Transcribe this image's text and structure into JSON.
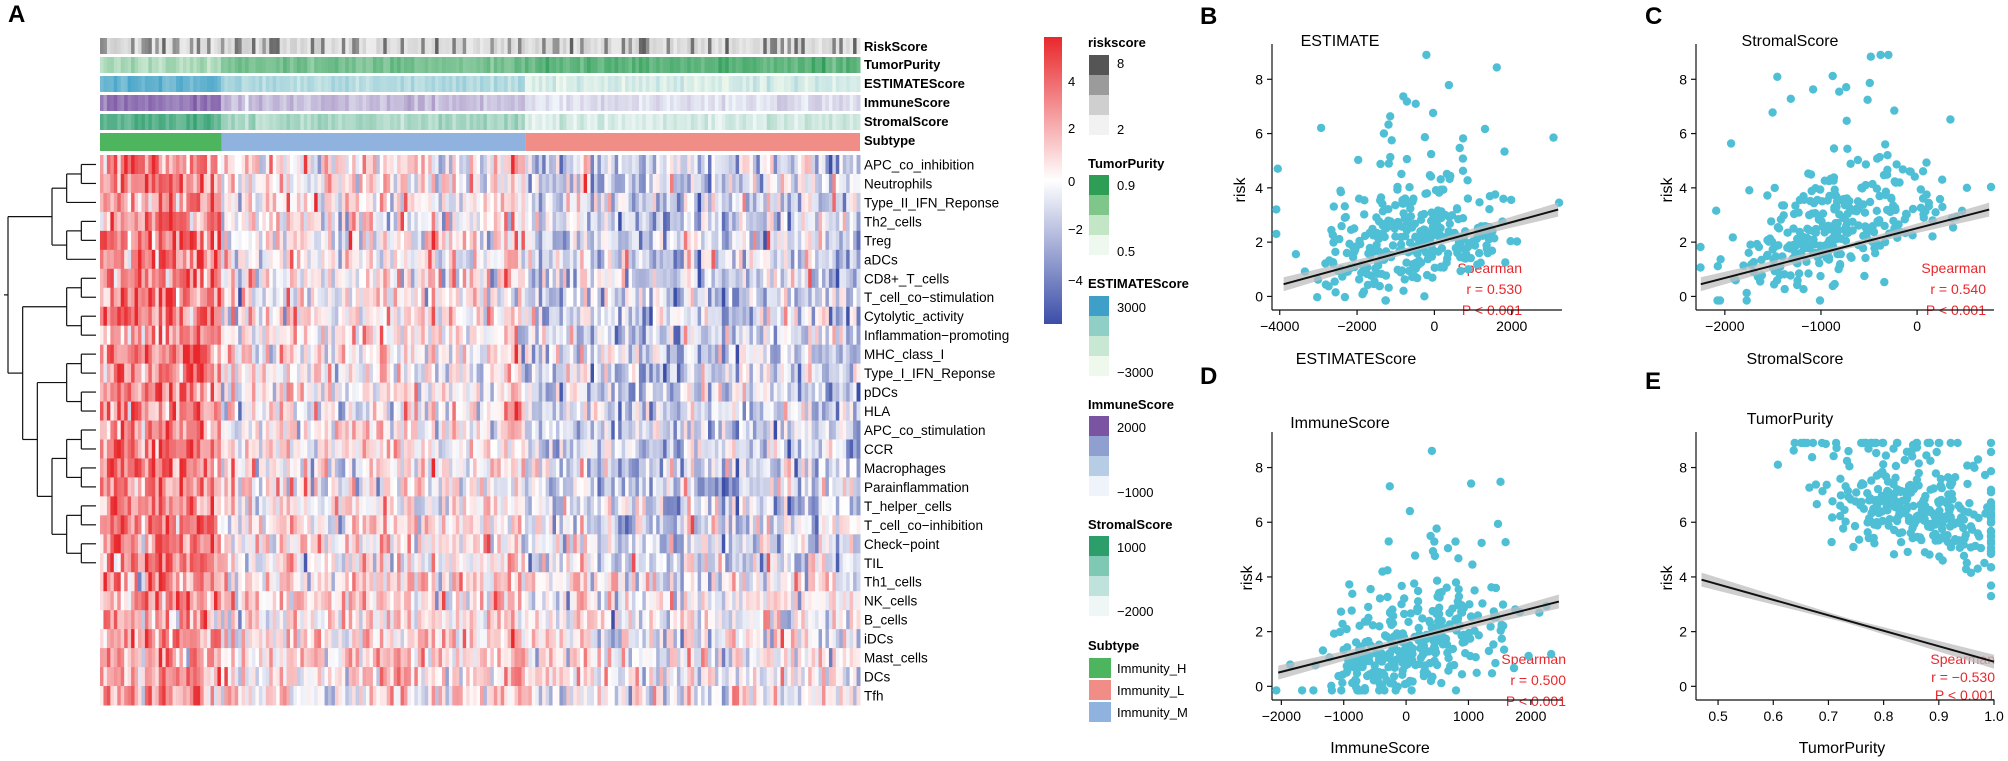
{
  "panel_letters": {
    "A": "A",
    "B": "B",
    "C": "C",
    "D": "D",
    "E": "E"
  },
  "colors": {
    "heat_high": "#e8282c",
    "heat_mid": "#ffffff",
    "heat_low": "#3b4ea8",
    "scatter_point": "#4fbfd6",
    "fit_line": "#111111",
    "ci_band": "#bdbdbd",
    "stat_text": "#e8282c",
    "immunity_h": "#4eb55f",
    "immunity_l": "#ef8d86",
    "immunity_m": "#8fb3de"
  },
  "heatmap": {
    "annotation_labels": [
      "RiskScore",
      "TumorPurity",
      "ESTIMATEScore",
      "ImmuneScore",
      "StromalScore",
      "Subtype"
    ],
    "row_labels": [
      "APC_co_inhibition",
      "Neutrophils",
      "Type_II_IFN_Reponse",
      "Th2_cells",
      "Treg",
      "aDCs",
      "CD8+_T_cells",
      "T_cell_co−stimulation",
      "Cytolytic_activity",
      "Inflammation−promoting",
      "MHC_class_I",
      "Type_I_IFN_Reponse",
      "pDCs",
      "HLA",
      "APC_co_stimulation",
      "CCR",
      "Macrophages",
      "Parainflammation",
      "T_helper_cells",
      "T_cell_co−inhibition",
      "Check−point",
      "TIL",
      "Th1_cells",
      "NK_cells",
      "B_cells",
      "iDCs",
      "Mast_cells",
      "DCs",
      "Tfh"
    ],
    "subtype_order": [
      "Immunity_H",
      "Immunity_M",
      "Immunity_L"
    ],
    "subtype_fractions": [
      0.16,
      0.4,
      0.44
    ],
    "colorbar_ticks": [
      "4",
      "2",
      "0",
      "−2",
      "−4"
    ]
  },
  "legend": {
    "riskscore": {
      "title": "riskscore",
      "ticks": [
        "8",
        "2"
      ]
    },
    "tumorpurity": {
      "title": "TumorPurity",
      "ticks": [
        "0.9",
        "0.5"
      ]
    },
    "estimatescore": {
      "title": "ESTIMATEScore",
      "ticks": [
        "3000",
        "−3000"
      ]
    },
    "immunescore": {
      "title": "ImmuneScore",
      "ticks": [
        "2000",
        "−1000"
      ]
    },
    "stromalscore": {
      "title": "StromalScore",
      "ticks": [
        "1000",
        "−2000"
      ]
    },
    "subtype": {
      "title": "Subtype",
      "items": [
        "Immunity_H",
        "Immunity_L",
        "Immunity_M"
      ]
    }
  },
  "chart_data": [
    {
      "panel": "B",
      "type": "scatter",
      "title": "ESTIMATE",
      "xlabel": "ESTIMATEScore",
      "ylabel": "risk",
      "xlim": [
        -4200,
        3300
      ],
      "ylim": [
        -0.5,
        9.3
      ],
      "xticks": [
        -4000,
        -2000,
        0,
        2000
      ],
      "xtick_labels": [
        "−4000",
        "−2000",
        "0",
        "2000"
      ],
      "yticks": [
        0,
        2,
        4,
        6,
        8
      ],
      "ytick_labels": [
        "0",
        "2",
        "4",
        "6",
        "8"
      ],
      "x_center": -600,
      "x_spread": 1300,
      "slope": 0.00036,
      "intercept": 2.0,
      "fit_line": {
        "x": [
          -3900,
          3200
        ],
        "y": [
          0.45,
          3.2
        ]
      },
      "stats": {
        "method": "Spearman",
        "r": "r = 0.530",
        "p": "P < 0.001"
      }
    },
    {
      "panel": "C",
      "type": "scatter",
      "title": "StromalScore",
      "xlabel": "StromalScore",
      "ylabel": "risk",
      "xlim": [
        -2300,
        800
      ],
      "ylim": [
        -0.5,
        9.3
      ],
      "xticks": [
        -2000,
        -1000,
        0
      ],
      "xtick_labels": [
        "−2000",
        "−1000",
        "0"
      ],
      "yticks": [
        0,
        2,
        4,
        6,
        8
      ],
      "ytick_labels": [
        "0",
        "2",
        "4",
        "6",
        "8"
      ],
      "x_center": -900,
      "x_spread": 550,
      "slope": 0.00095,
      "intercept": 2.35,
      "fit_line": {
        "x": [
          -2250,
          750
        ],
        "y": [
          0.45,
          3.2
        ]
      },
      "stats": {
        "method": "Spearman",
        "r": "r = 0.540",
        "p": "P < 0.001"
      }
    },
    {
      "panel": "D",
      "type": "scatter",
      "title": "ImmuneScore",
      "xlabel": "ImmuneScore",
      "ylabel": "risk",
      "xlim": [
        -2150,
        2500
      ],
      "ylim": [
        -0.5,
        9.3
      ],
      "xticks": [
        -2000,
        -1000,
        0,
        1000,
        2000
      ],
      "xtick_labels": [
        "−2000",
        "−1000",
        "0",
        "1000",
        "2000"
      ],
      "yticks": [
        0,
        2,
        4,
        6,
        8
      ],
      "ytick_labels": [
        "0",
        "2",
        "4",
        "6",
        "8"
      ],
      "x_center": 150,
      "x_spread": 800,
      "slope": 0.00058,
      "intercept": 1.6,
      "fit_line": {
        "x": [
          -2050,
          2450
        ],
        "y": [
          0.5,
          3.1
        ]
      },
      "stats": {
        "method": "Spearman",
        "r": "r = 0.500",
        "p": "P < 0.001"
      }
    },
    {
      "panel": "E",
      "type": "scatter",
      "title": "TumorPurity",
      "xlabel": "TumorPurity",
      "ylabel": "risk",
      "xlim": [
        0.46,
        1.0
      ],
      "ylim": [
        -0.5,
        9.3
      ],
      "xticks": [
        0.5,
        0.6,
        0.7,
        0.8,
        0.9,
        1.0
      ],
      "xtick_labels": [
        "0.5",
        "0.6",
        "0.7",
        "0.8",
        "0.9",
        "1.0"
      ],
      "yticks": [
        0,
        2,
        4,
        6,
        8
      ],
      "ytick_labels": [
        "0",
        "2",
        "4",
        "6",
        "8"
      ],
      "x_center": 0.86,
      "x_spread": 0.09,
      "slope": -5.6,
      "intercept": 6.5,
      "fit_line": {
        "x": [
          0.47,
          1.0
        ],
        "y": [
          3.9,
          0.9
        ]
      },
      "stats": {
        "method": "Spearman",
        "r": "r = −0.530",
        "p": "P < 0.001"
      }
    }
  ]
}
